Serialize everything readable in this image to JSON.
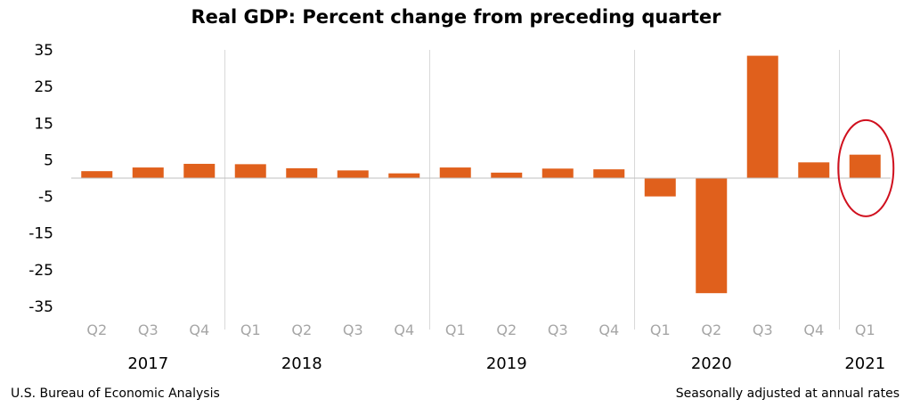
{
  "chart_data": {
    "type": "bar",
    "title": "Real GDP:  Percent change from preceding quarter",
    "xlabel": "",
    "ylabel": "",
    "ylim": [
      -35,
      35
    ],
    "yticks": [
      "35",
      "25",
      "15",
      "5",
      "-5",
      "-15",
      "-25",
      "-35"
    ],
    "categories": [
      "Q2",
      "Q3",
      "Q4",
      "Q1",
      "Q2",
      "Q3",
      "Q4",
      "Q1",
      "Q2",
      "Q3",
      "Q4",
      "Q1",
      "Q2",
      "Q3",
      "Q4",
      "Q1"
    ],
    "values": [
      1.9,
      2.9,
      3.9,
      3.8,
      2.7,
      2.1,
      1.3,
      2.9,
      1.5,
      2.6,
      2.4,
      -5.0,
      -31.4,
      33.4,
      4.3,
      6.4
    ],
    "years": [
      {
        "label": "2017",
        "start": 0,
        "count": 3
      },
      {
        "label": "2018",
        "start": 3,
        "count": 4
      },
      {
        "label": "2019",
        "start": 7,
        "count": 4
      },
      {
        "label": "2020",
        "start": 11,
        "count": 4
      },
      {
        "label": "2021",
        "start": 15,
        "count": 1
      }
    ],
    "bar_color": "#e0601c",
    "highlight": {
      "index": 15,
      "color": "#d0101e"
    },
    "grid": false,
    "legend": "none"
  },
  "footer": {
    "source": "U.S. Bureau of Economic Analysis",
    "note": "Seasonally adjusted at annual rates"
  }
}
